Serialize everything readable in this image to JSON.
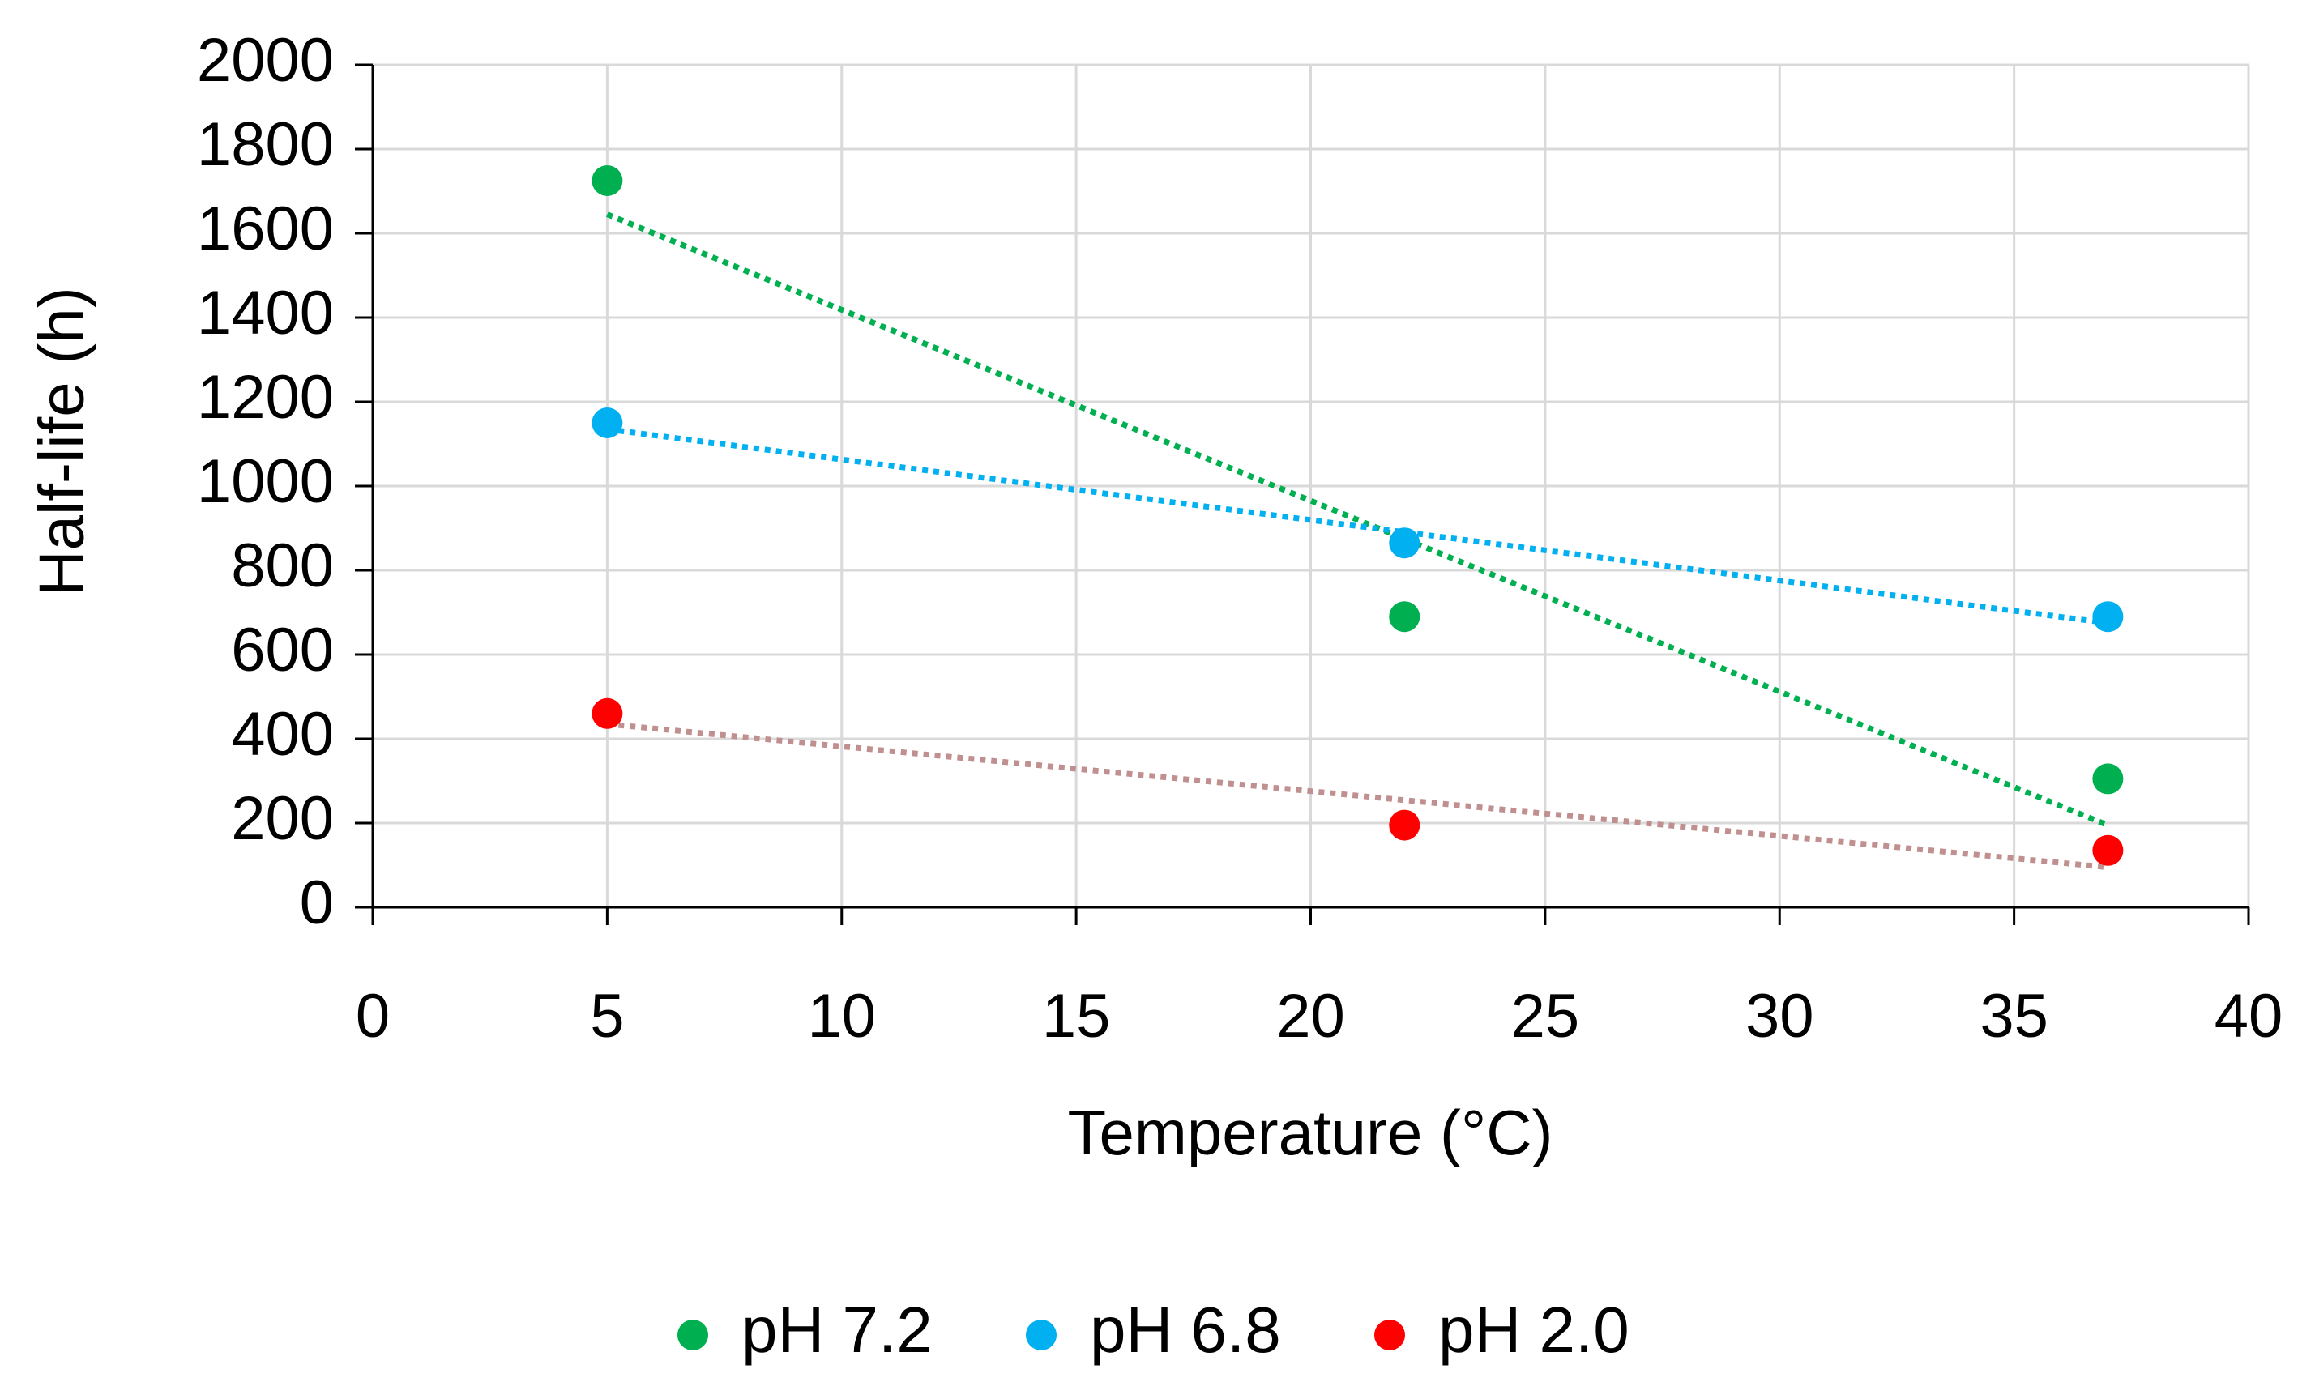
{
  "chart_data": {
    "type": "scatter",
    "title": "",
    "xlabel": "Temperature (°C)",
    "ylabel": "Half-life (h)",
    "xlim": [
      0,
      40
    ],
    "ylim": [
      0,
      2000
    ],
    "x_ticks": [
      0,
      5,
      10,
      15,
      20,
      25,
      30,
      35,
      40
    ],
    "y_ticks": [
      0,
      200,
      400,
      600,
      800,
      1000,
      1200,
      1400,
      1600,
      1800,
      2000
    ],
    "grid": true,
    "legend_position": "bottom",
    "series": [
      {
        "name": "pH 7.2",
        "color": "#00b050",
        "trend_color": "#00b050",
        "x": [
          5,
          22,
          37
        ],
        "y": [
          1725,
          690,
          305
        ],
        "trendline": {
          "type": "linear",
          "x": [
            5,
            37
          ],
          "y": [
            1645,
            195
          ]
        }
      },
      {
        "name": "pH 6.8",
        "color": "#00b0f0",
        "trend_color": "#00b0f0",
        "x": [
          5,
          22,
          37
        ],
        "y": [
          1150,
          865,
          690
        ],
        "trendline": {
          "type": "linear",
          "x": [
            5,
            37
          ],
          "y": [
            1135,
            675
          ]
        }
      },
      {
        "name": "pH 2.0",
        "color": "#ff0000",
        "trend_color": "#c09090",
        "x": [
          5,
          22,
          37
        ],
        "y": [
          460,
          195,
          135
        ],
        "trendline": {
          "type": "linear",
          "x": [
            5,
            37
          ],
          "y": [
            435,
            95
          ]
        }
      }
    ]
  }
}
